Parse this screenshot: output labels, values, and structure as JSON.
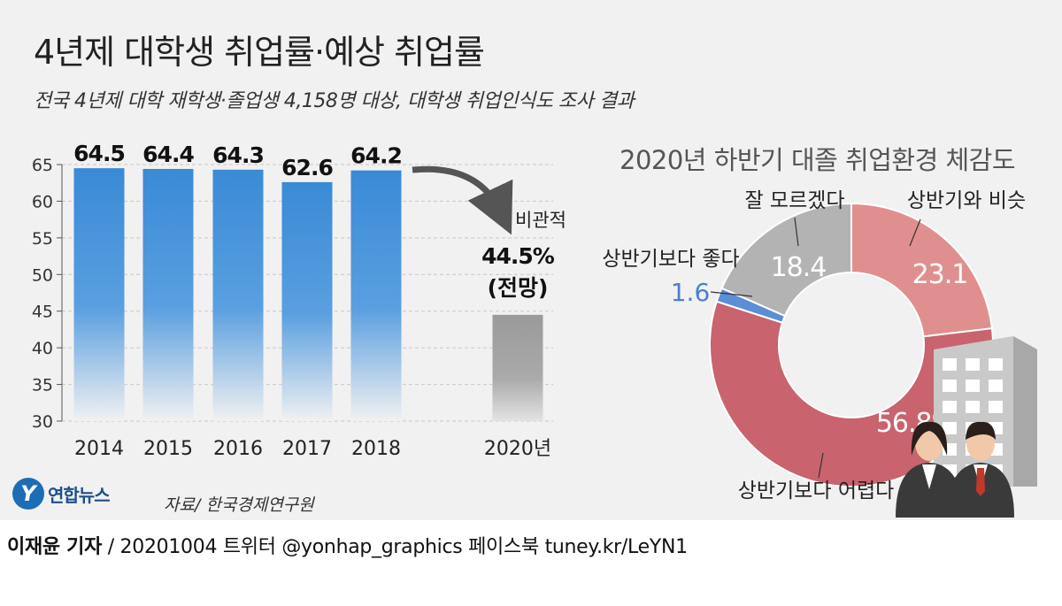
{
  "title": "4년제 대학생 취업률·예상 취업률",
  "subtitle": "전국 4년제 대학 재학생·졸업생 4,158명 대상, 대학생 취업인식도 조사 결과",
  "logo_text": "연합뉴스",
  "source": "자료/ 한국경제연구원",
  "footer": {
    "author": "이재윤 기자",
    "rest": " / 20201004   트위터 @yonhap_graphics  페이스북 tuney.kr/LeYN1"
  },
  "colors": {
    "bar_blue": "#3a8ad6",
    "bar_gray": "#9a9a9a",
    "donut_pink": "#e08f8f",
    "donut_red": "#c9636e",
    "donut_blue": "#5b8ed6",
    "donut_gray": "#b3b3b3"
  },
  "chart_data": [
    {
      "type": "bar",
      "categories": [
        "2014",
        "2015",
        "2016",
        "2017",
        "2018",
        "2020년"
      ],
      "values": [
        64.5,
        64.4,
        64.3,
        62.6,
        64.2,
        44.5
      ],
      "value_labels": [
        "64.5",
        "64.4",
        "64.3",
        "62.6",
        "64.2",
        "44.5%"
      ],
      "ylim": [
        30,
        65
      ],
      "yticks": [
        30,
        35,
        40,
        45,
        50,
        55,
        60,
        65
      ],
      "annotations": {
        "arrow_label": "비관적",
        "forecast_label": "(전망)"
      }
    },
    {
      "type": "pie",
      "title": "2020년 하반기 대졸 취업환경 체감도",
      "slices": [
        {
          "label": "상반기와 비슷",
          "value": 23.1,
          "value_label": "23.1"
        },
        {
          "label": "상반기보다 어렵다",
          "value": 56.8,
          "value_label": "56.8%"
        },
        {
          "label": "상반기보다 좋다",
          "value": 1.6,
          "value_label": "1.6"
        },
        {
          "label": "잘 모르겠다",
          "value": 18.4,
          "value_label": "18.4"
        }
      ]
    }
  ]
}
